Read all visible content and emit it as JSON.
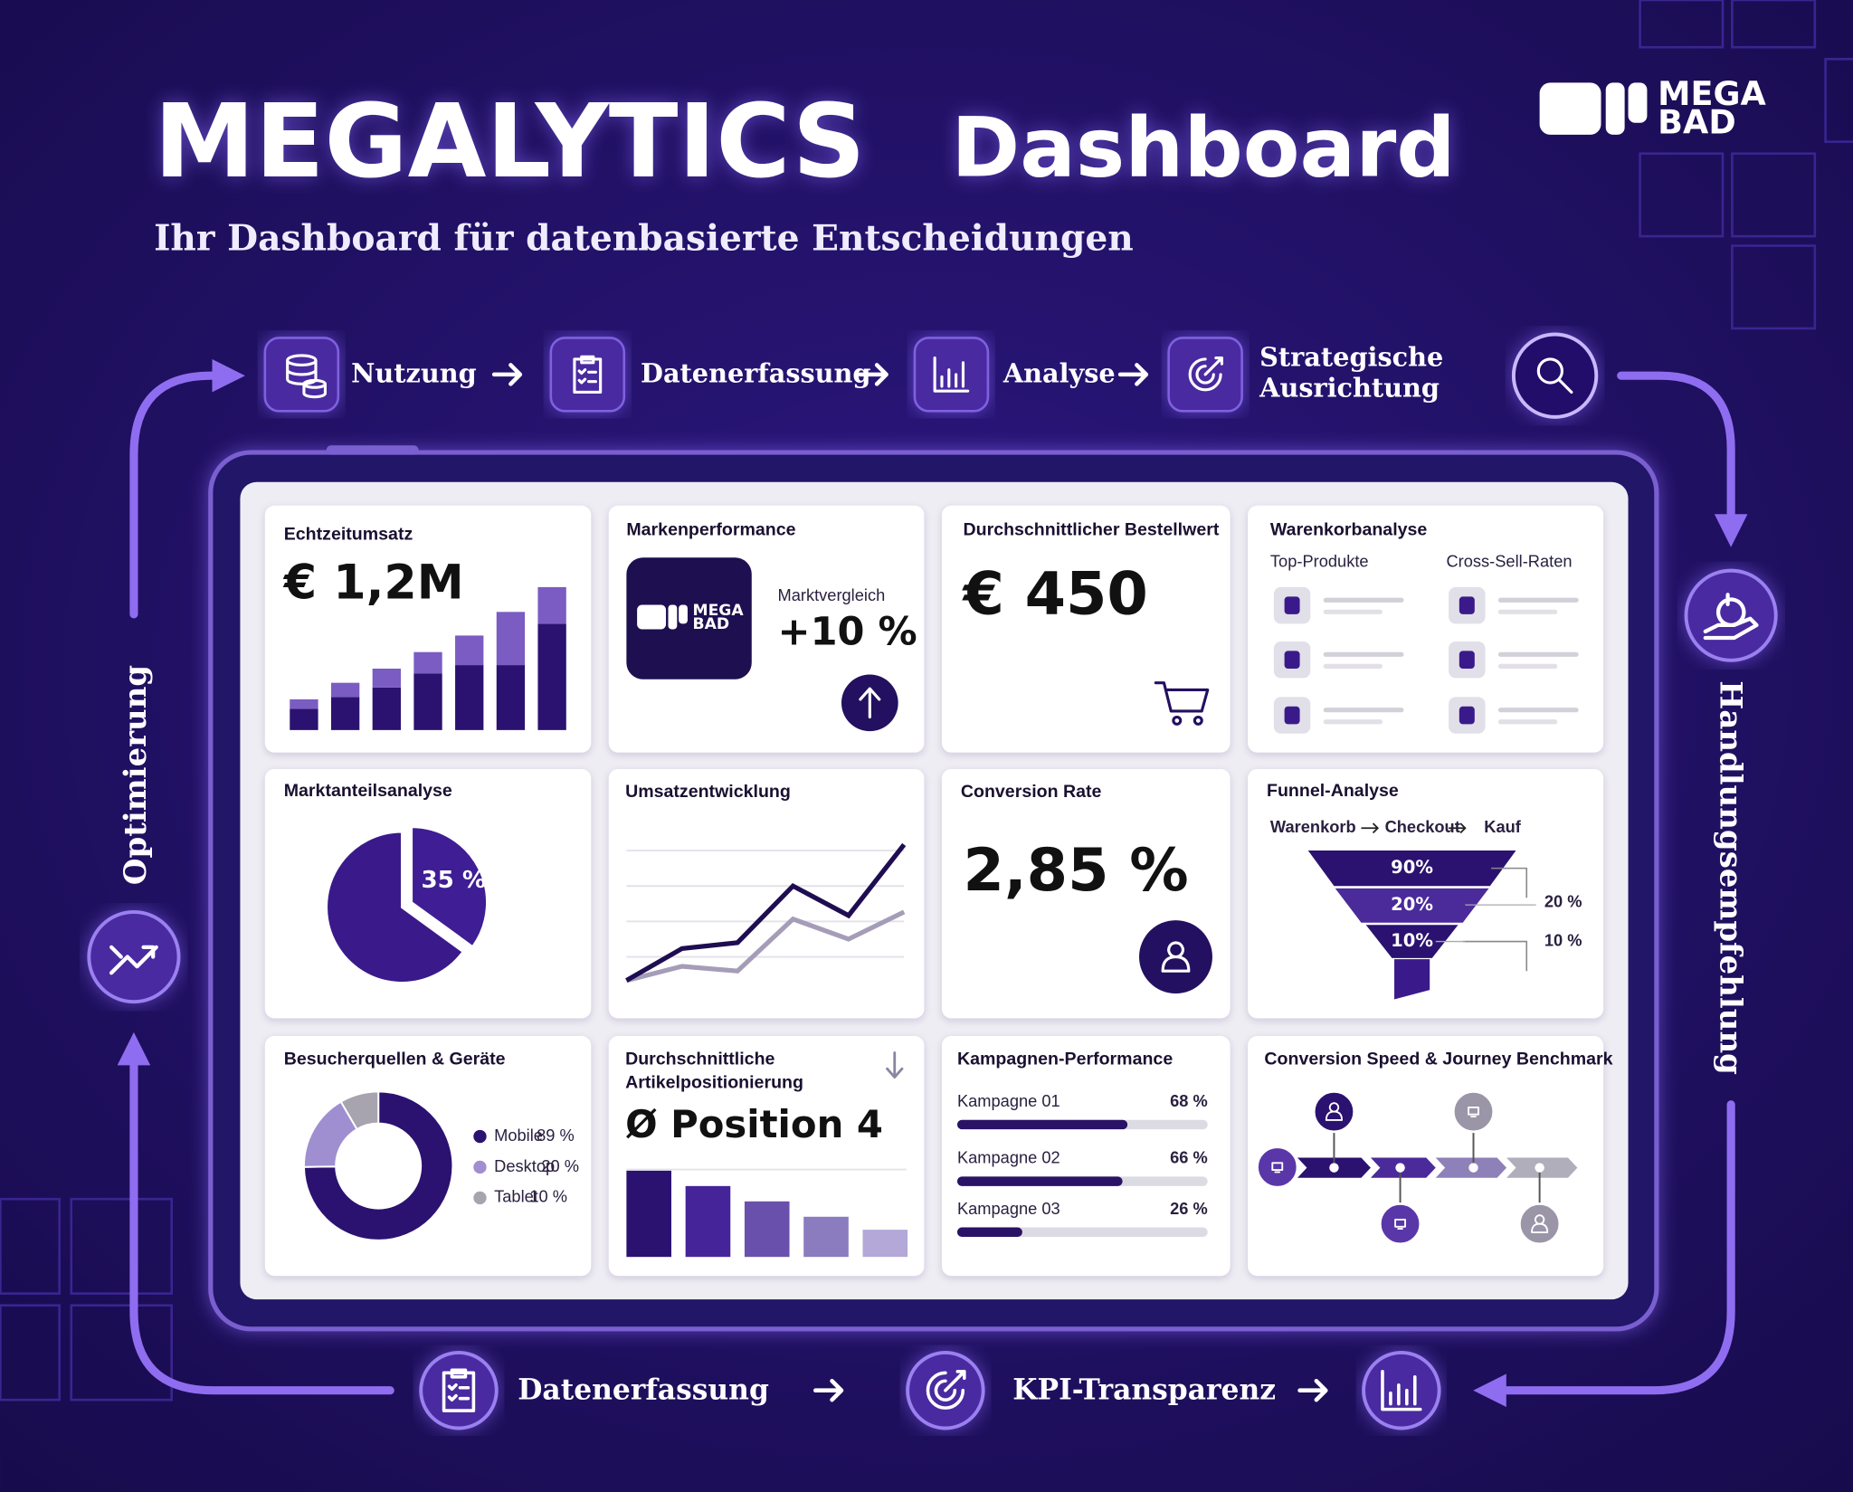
{
  "header": {
    "title_main": "MEGALYTICS",
    "title_rest": "Dashboard",
    "subtitle": "Ihr Dashboard für datenbasierte Entscheidungen",
    "logo": [
      "MEGA",
      "BAD"
    ]
  },
  "top_flow": [
    [
      "Nutzung"
    ],
    [
      "Datenerfassung"
    ],
    [
      "Analyse"
    ],
    [
      "Strategische",
      "Ausrichtung"
    ]
  ],
  "side": {
    "left": "Optimierung",
    "right": "Handlungsempfehlung"
  },
  "bottom_flow": [
    "Datenerfassung",
    "KPI-Transparenz"
  ],
  "cards": {
    "revenue": {
      "title": "Echtzeitumsatz",
      "value": "€ 1,2M",
      "chart": {
        "type": "bar",
        "stacked": true,
        "categories": [
          null,
          null,
          null,
          null,
          null,
          null,
          null
        ],
        "ylim": [
          0,
          130
        ],
        "series": [
          {
            "color": "#2b1270",
            "values": [
              18,
              28,
              36,
              48,
              55,
              55,
              90
            ]
          },
          {
            "color": "#7a5cc2",
            "values": [
              8,
              12,
              16,
              18,
              25,
              45,
              31
            ]
          }
        ]
      }
    },
    "brand": {
      "title": "Markenperformance",
      "logo": [
        "MEGA",
        "BAD"
      ],
      "label": "Marktvergleich",
      "value": "+10 %"
    },
    "aov": {
      "title": "Durchschnittlicher Bestellwert",
      "value": "€ 450"
    },
    "basket": {
      "title": "Warenkorbanalyse",
      "columns": [
        "Top-Produkte",
        "Cross-Sell-Raten"
      ]
    },
    "share": {
      "title": "Marktanteilsanalyse",
      "chart": {
        "type": "pie",
        "values": [
          35,
          65
        ],
        "value_labels": [
          "35 %",
          null
        ],
        "colors": [
          "#3f1d94",
          "#3a1a8a"
        ]
      }
    },
    "trend": {
      "title": "Umsatzentwicklung",
      "chart": {
        "type": "line",
        "categories": [
          null,
          null,
          null,
          null,
          null,
          null
        ],
        "ylim": [
          0,
          130
        ],
        "series": [
          {
            "color": "#1f0d52",
            "values": [
              10,
              37,
              42,
              90,
              65,
              125
            ]
          },
          {
            "color": "#a59db8",
            "values": [
              10,
              22,
              18,
              62,
              45,
              68
            ]
          }
        ]
      }
    },
    "conversion": {
      "title": "Conversion Rate",
      "value": "2,85 %"
    },
    "funnel": {
      "title": "Funnel-Analyse",
      "steps": [
        "Warenkorb",
        "Checkout",
        "Kauf"
      ],
      "levels": [
        "90%",
        "20%",
        "10%"
      ],
      "drops": [
        "20 %",
        "10 %"
      ]
    },
    "sources": {
      "title": "Besucherquellen & Geräte",
      "chart": {
        "type": "donut",
        "categories": [
          "Mobile",
          "Desktop",
          "Tablet"
        ],
        "values": [
          89,
          20,
          10
        ],
        "value_labels": [
          "89 %",
          "20 %",
          "10 %"
        ],
        "colors": [
          "#2b1270",
          "#9f8fd0",
          "#a7a4b0"
        ]
      }
    },
    "position": {
      "title": [
        "Durchschnittliche",
        "Artikelpositionierung"
      ],
      "value": "Ø Position 4",
      "chart": {
        "type": "bar",
        "values": [
          73,
          60,
          47,
          34,
          23
        ],
        "ylim": [
          0,
          80
        ],
        "colors": [
          "#2b1270",
          "#45249a",
          "#6a50ad",
          "#8b7bbf",
          "#b3a8d8"
        ]
      }
    },
    "campaigns": {
      "title": "Kampagnen-Performance",
      "chart": {
        "type": "bar",
        "orientation": "horizontal",
        "categories": [
          "Kampagne 01",
          "Kampagne 02",
          "Kampagne 03"
        ],
        "values": [
          68,
          66,
          26
        ],
        "value_labels": [
          "68 %",
          "66 %",
          "26 %"
        ],
        "xlim": [
          0,
          100
        ],
        "color": "#2a1266"
      }
    },
    "journey": {
      "title": "Conversion Speed & Journey Benchmark"
    }
  }
}
